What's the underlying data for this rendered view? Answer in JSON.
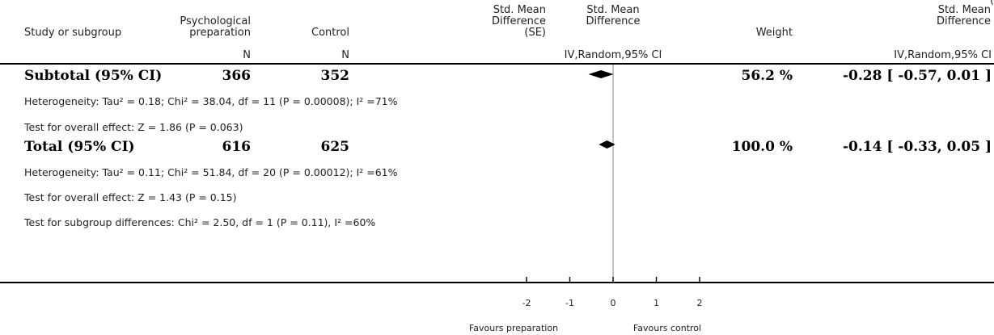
{
  "header": {
    "corner_fragment": "(",
    "col_study": "Study or subgroup",
    "col_exp": "Psychological preparation",
    "col_ctrl": "Control",
    "col_smd_se": "Std. Mean Difference (SE)",
    "col_plot": "Std. Mean Difference",
    "col_weight": "Weight",
    "col_effect": "Std. Mean Difference",
    "unit_exp": "N",
    "unit_ctrl": "N",
    "unit_plot": "IV,Random,95% CI",
    "unit_effect": "IV,Random,95% CI"
  },
  "rows": {
    "subtotal": {
      "label": "Subtotal (95% CI)",
      "exp_n": "366",
      "ctrl_n": "352",
      "weight": "56.2 %",
      "effect": "-0.28 [ -0.57, 0.01 ]"
    },
    "subtotal_het": "Heterogeneity: Tau² = 0.18; Chi² = 38.04, df = 11 (P = 0.00008); I² =71%",
    "subtotal_test": "Test for overall effect: Z = 1.86 (P = 0.063)",
    "total": {
      "label": "Total (95% CI)",
      "exp_n": "616",
      "ctrl_n": "625",
      "weight": "100.0 %",
      "effect": "-0.14 [ -0.33, 0.05 ]"
    },
    "total_het": "Heterogeneity: Tau² = 0.11; Chi² = 51.84, df = 20 (P = 0.00012); I² =61%",
    "total_test": "Test for overall effect: Z = 1.43 (P = 0.15)",
    "subgroup_test": "Test for subgroup differences: Chi² = 2.50, df = 1 (P = 0.11), I² =60%"
  },
  "axis": {
    "favours_left": "Favours preparation",
    "favours_right": "Favours control"
  },
  "chart_data": {
    "type": "forest",
    "xlim": [
      -2,
      2
    ],
    "ticks": [
      -2,
      -1,
      0,
      1,
      2
    ],
    "tick_labels": [
      "-2",
      "-1",
      "0",
      "1",
      "2"
    ],
    "null_line": 0,
    "summary_diamonds": [
      {
        "name": "Subtotal (95% CI)",
        "estimate": -0.28,
        "lower": -0.57,
        "upper": 0.01
      },
      {
        "name": "Total (95% CI)",
        "estimate": -0.14,
        "lower": -0.33,
        "upper": 0.05
      }
    ]
  }
}
